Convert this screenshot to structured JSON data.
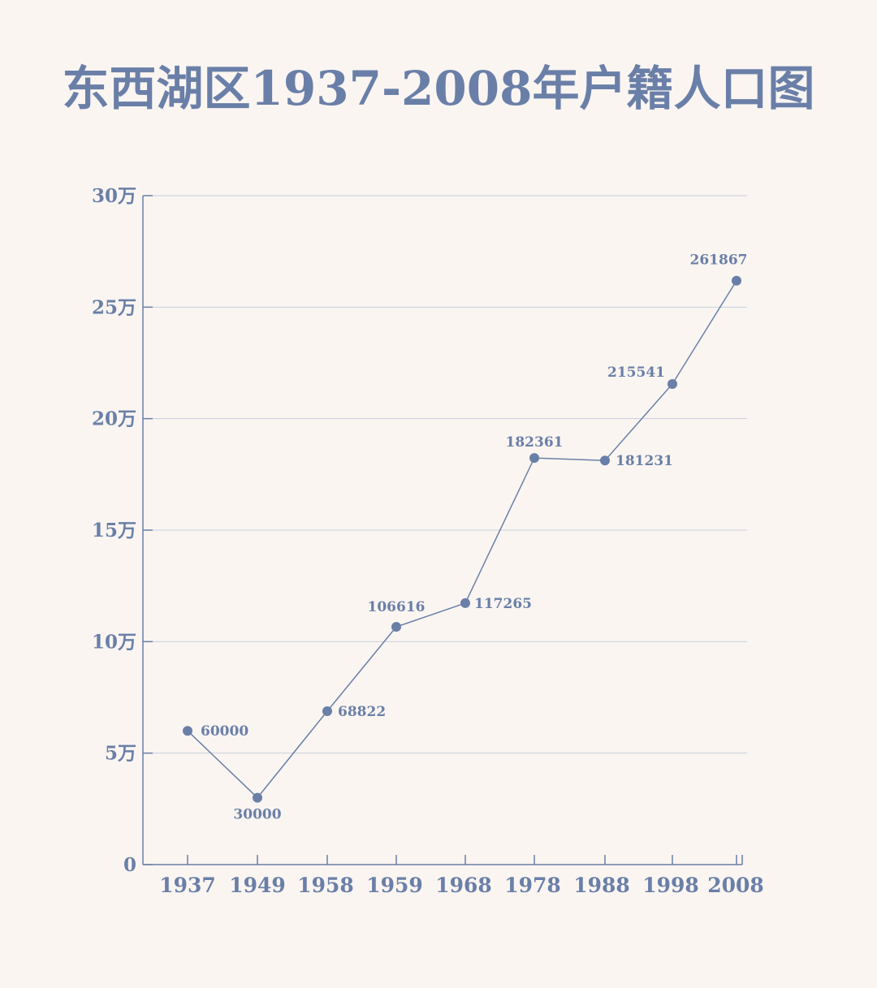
{
  "chart_data": {
    "type": "line",
    "title": "东西湖区1937-2008年户籍人口图",
    "xlabel": "",
    "ylabel": "",
    "categories": [
      "1937",
      "1949",
      "1958",
      "1959",
      "1968",
      "1978",
      "1988",
      "1998",
      "2008"
    ],
    "values": [
      60000,
      30000,
      68822,
      106616,
      117265,
      182361,
      181231,
      215541,
      261867
    ],
    "data_labels": [
      "60000",
      "30000",
      "68822",
      "106616",
      "117265",
      "182361",
      "181231",
      "215541",
      "261867"
    ],
    "ylim": [
      0,
      300000
    ],
    "yticks": [
      0,
      50000,
      100000,
      150000,
      200000,
      250000,
      300000
    ],
    "ytick_labels": [
      "0",
      "5万",
      "10万",
      "15万",
      "20万",
      "25万",
      "30万"
    ],
    "grid": true,
    "colors": {
      "line": "#6a7fa8",
      "grid": "#c9cfdc",
      "background": "#faf5f1"
    }
  }
}
